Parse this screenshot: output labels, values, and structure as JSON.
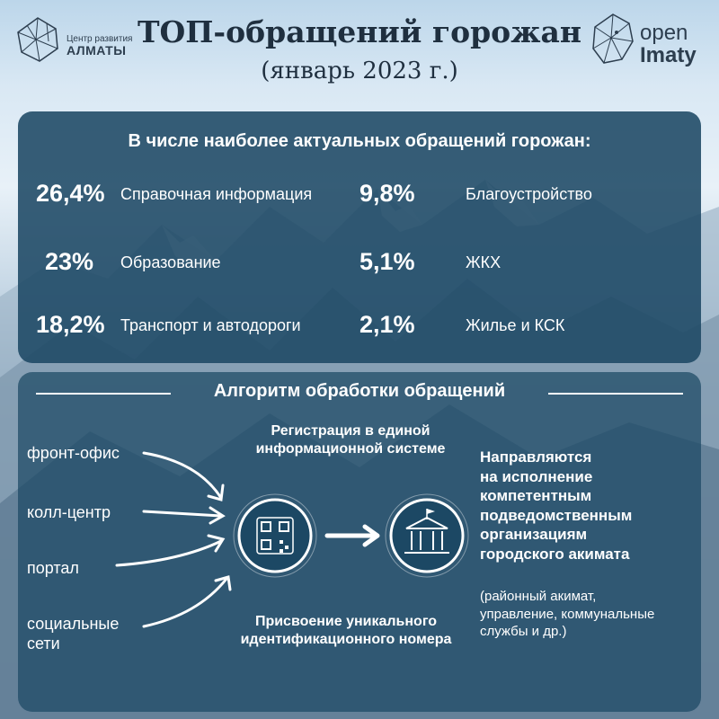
{
  "header": {
    "title": "ТОП-обращений горожан",
    "subtitle": "(январь 2023 г.)",
    "logo_left": {
      "line1": "Центр развития",
      "line2": "АЛМАТЫ"
    },
    "logo_right": {
      "line1": "open",
      "line2": "Imaty"
    }
  },
  "top_requests": {
    "heading": "В числе наиболее актуальных обращений горожан:",
    "items": [
      {
        "value": "26,4%",
        "label": "Справочная информация"
      },
      {
        "value": "23%",
        "label": "Образование"
      },
      {
        "value": "18,2%",
        "label": "Транспорт и автодороги"
      },
      {
        "value": "9,8%",
        "label": "Благоустройство"
      },
      {
        "value": "5,1%",
        "label": "ЖКХ"
      },
      {
        "value": "2,1%",
        "label": "Жилье и КСК"
      }
    ]
  },
  "algorithm": {
    "heading": "Алгоритм обработки обращений",
    "channels": [
      "фронт-офис",
      "колл-центр",
      "портал",
      "социальные сети"
    ],
    "step_registration": "Регистрация в единой информационной системе",
    "step_assign": "Присвоение уникального идентификационного номера",
    "result_title": "Направляются\nна исполнение\nкомпетентным\nподведомственным\nорганизациям\nгородского акимата",
    "result_note": "(районный акимат,\nуправление, коммунальные\nслужбы и др.)",
    "icons": [
      "qr-code-icon",
      "government-building-icon",
      "arrow-right-icon"
    ]
  },
  "colors": {
    "panel": "#1c4864",
    "text_dark": "#1f2f3f",
    "text_light": "#ffffff"
  }
}
